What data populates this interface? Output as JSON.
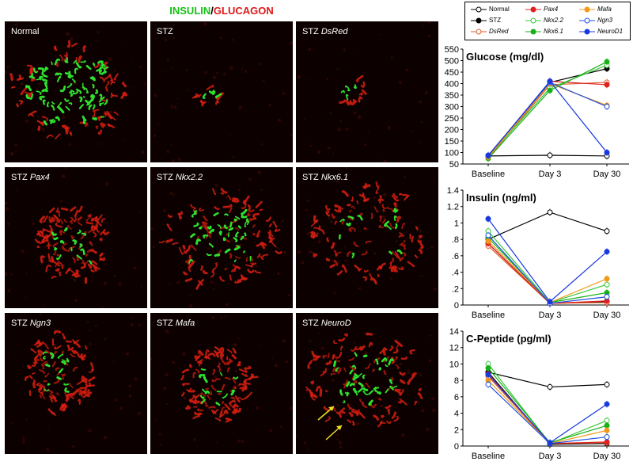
{
  "figure_title": {
    "insulin": "INSULIN",
    "separator": "/",
    "glucagon": "GLUCAGON"
  },
  "colors": {
    "insulin": "#18c018",
    "glucagon": "#e01818"
  },
  "panels": [
    {
      "prefix": "Normal",
      "gene": "",
      "islet": "large"
    },
    {
      "prefix": "STZ",
      "gene": "",
      "islet": "tiny"
    },
    {
      "prefix": "STZ",
      "gene": "DsRed",
      "islet": "tiny"
    },
    {
      "prefix": "STZ",
      "gene": "Pax4",
      "islet": "medium"
    },
    {
      "prefix": "STZ",
      "gene": "Nkx2.2",
      "islet": "large"
    },
    {
      "prefix": "STZ",
      "gene": "Nkx6.1",
      "islet": "large"
    },
    {
      "prefix": "STZ",
      "gene": "Ngn3",
      "islet": "medium"
    },
    {
      "prefix": "STZ",
      "gene": "Mafa",
      "islet": "medium"
    },
    {
      "prefix": "STZ",
      "gene": "NeuroD",
      "islet": "large",
      "arrows": 2
    }
  ],
  "legend": [
    {
      "name": "Normal",
      "color": "#000000",
      "filled": false,
      "italic": false
    },
    {
      "name": "Pax4",
      "color": "#e02020",
      "filled": true,
      "italic": true
    },
    {
      "name": "Mafa",
      "color": "#f09a1a",
      "filled": true,
      "italic": true
    },
    {
      "name": "STZ",
      "color": "#000000",
      "filled": true,
      "italic": false
    },
    {
      "name": "Nkx2.2",
      "color": "#38c838",
      "filled": false,
      "italic": true
    },
    {
      "name": "Ngn3",
      "color": "#2050e0",
      "filled": false,
      "italic": true
    },
    {
      "name": "DsRed",
      "color": "#e05a2a",
      "filled": false,
      "italic": true
    },
    {
      "name": "Nkx6.1",
      "color": "#18b018",
      "filled": true,
      "italic": true
    },
    {
      "name": "NeuroD1",
      "color": "#1838e0",
      "filled": true,
      "italic": true
    }
  ],
  "chart_data": [
    {
      "type": "line",
      "title": "Glucose (mg/dl)",
      "categories": [
        "Baseline",
        "Day 3",
        "Day 30"
      ],
      "ylim": [
        50,
        550
      ],
      "yticks": [
        "50",
        "100",
        "150",
        "200",
        "250",
        "300",
        "350",
        "400",
        "450",
        "500",
        "550"
      ],
      "series": [
        {
          "name": "Normal",
          "values": [
            85,
            88,
            85
          ]
        },
        {
          "name": "STZ",
          "values": [
            80,
            405,
            465
          ]
        },
        {
          "name": "DsRed",
          "values": [
            75,
            395,
            405
          ]
        },
        {
          "name": "Pax4",
          "values": [
            78,
            410,
            395
          ]
        },
        {
          "name": "Nkx2.2",
          "values": [
            82,
            380,
            480
          ]
        },
        {
          "name": "Nkx6.1",
          "values": [
            74,
            370,
            495
          ]
        },
        {
          "name": "Mafa",
          "values": [
            80,
            400,
            305
          ]
        },
        {
          "name": "Ngn3",
          "values": [
            88,
            405,
            300
          ]
        },
        {
          "name": "NeuroD1",
          "values": [
            86,
            410,
            100
          ]
        }
      ]
    },
    {
      "type": "line",
      "title": "Insulin (ng/ml)",
      "categories": [
        "Baseline",
        "Day 3",
        "Day 30"
      ],
      "ylim": [
        0,
        1.4
      ],
      "yticks": [
        "0",
        ".2",
        ".4",
        ".6",
        ".8",
        "1",
        "1.2",
        "1.4"
      ],
      "series": [
        {
          "name": "Normal",
          "values": [
            0.8,
            1.13,
            0.9
          ]
        },
        {
          "name": "STZ",
          "values": [
            0.75,
            0.02,
            0.04
          ]
        },
        {
          "name": "DsRed",
          "values": [
            0.72,
            0.02,
            0.03
          ]
        },
        {
          "name": "Pax4",
          "values": [
            0.75,
            0.02,
            0.05
          ]
        },
        {
          "name": "Nkx2.2",
          "values": [
            0.9,
            0.03,
            0.25
          ]
        },
        {
          "name": "Nkx6.1",
          "values": [
            0.82,
            0.03,
            0.15
          ]
        },
        {
          "name": "Mafa",
          "values": [
            0.78,
            0.03,
            0.32
          ]
        },
        {
          "name": "Ngn3",
          "values": [
            0.85,
            0.02,
            0.1
          ]
        },
        {
          "name": "NeuroD1",
          "values": [
            1.05,
            0.04,
            0.65
          ]
        }
      ]
    },
    {
      "type": "line",
      "title": "C-Peptide (pg/ml)",
      "categories": [
        "Baseline",
        "Day 3",
        "Day 30"
      ],
      "ylim": [
        0,
        14
      ],
      "yticks": [
        "0",
        "2",
        "4",
        "6",
        "8",
        "10",
        "12",
        "14"
      ],
      "series": [
        {
          "name": "Normal",
          "values": [
            9.0,
            7.2,
            7.5
          ]
        },
        {
          "name": "STZ",
          "values": [
            9.0,
            0.2,
            0.3
          ]
        },
        {
          "name": "DsRed",
          "values": [
            8.5,
            0.3,
            0.4
          ]
        },
        {
          "name": "Pax4",
          "values": [
            8.8,
            0.3,
            0.5
          ]
        },
        {
          "name": "Nkx2.2",
          "values": [
            10.0,
            0.3,
            3.1
          ]
        },
        {
          "name": "Nkx6.1",
          "values": [
            9.5,
            0.4,
            2.5
          ]
        },
        {
          "name": "Mafa",
          "values": [
            8.0,
            0.3,
            1.9
          ]
        },
        {
          "name": "Ngn3",
          "values": [
            7.5,
            0.3,
            1.1
          ]
        },
        {
          "name": "NeuroD1",
          "values": [
            8.7,
            0.4,
            5.1
          ]
        }
      ]
    }
  ]
}
